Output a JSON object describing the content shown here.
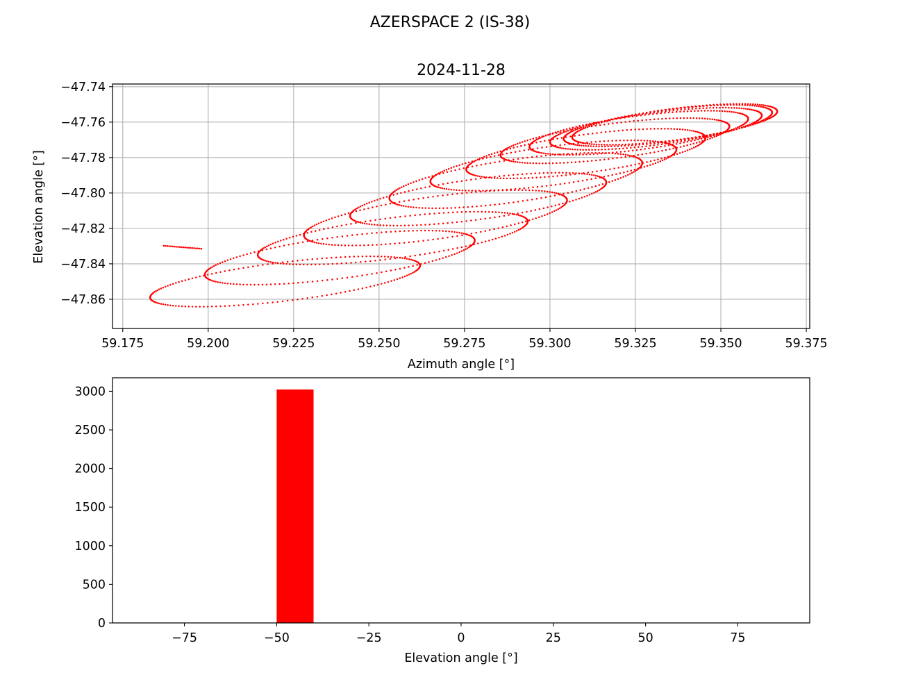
{
  "figure": {
    "suptitle": "AZERSPACE 2 (IS-38)"
  },
  "colors": {
    "series": "#ff0000",
    "grid": "#b0b0b0",
    "axis": "#000000"
  },
  "chart_data": [
    {
      "type": "scatter",
      "title": "2024-11-28",
      "xlabel": "Azimuth angle [°]",
      "ylabel": "Elevation angle [°]",
      "xlim": [
        59.172,
        59.376
      ],
      "ylim": [
        -47.8765,
        -47.7385
      ],
      "xticks": [
        59.175,
        59.2,
        59.225,
        59.25,
        59.275,
        59.3,
        59.325,
        59.35,
        59.375
      ],
      "xtick_labels": [
        "59.175",
        "59.200",
        "59.225",
        "59.250",
        "59.275",
        "59.300",
        "59.325",
        "59.350",
        "59.375"
      ],
      "yticks": [
        -47.74,
        -47.76,
        -47.78,
        -47.8,
        -47.82,
        -47.84,
        -47.86
      ],
      "ytick_labels": [
        "−47.74",
        "−47.76",
        "−47.78",
        "−47.80",
        "−47.82",
        "−47.84",
        "−47.86"
      ],
      "grid": true,
      "marker": "dot",
      "series_color": "#ff0000",
      "loops": [
        {
          "az_left": 59.183,
          "az_right": 59.262,
          "el_top": -47.83,
          "el_bottom": -47.87
        },
        {
          "az_left": 59.199,
          "az_right": 59.278,
          "el_top": -47.815,
          "el_bottom": -47.858
        },
        {
          "az_left": 59.2145,
          "az_right": 59.2935,
          "el_top": -47.8045,
          "el_bottom": -47.8465
        },
        {
          "az_left": 59.228,
          "az_right": 59.305,
          "el_top": -47.792,
          "el_bottom": -47.836
        },
        {
          "az_left": 59.2415,
          "az_right": 59.3165,
          "el_top": -47.7825,
          "el_bottom": -47.8245
        },
        {
          "az_left": 59.253,
          "az_right": 59.327,
          "el_top": -47.771,
          "el_bottom": -47.815
        },
        {
          "az_left": 59.265,
          "az_right": 59.337,
          "el_top": -47.7645,
          "el_bottom": -47.8045
        },
        {
          "az_left": 59.2755,
          "az_right": 59.3455,
          "el_top": -47.758,
          "el_bottom": -47.7975
        },
        {
          "az_left": 59.2855,
          "az_right": 59.3525,
          "el_top": -47.7525,
          "el_bottom": -47.7885
        },
        {
          "az_left": 59.294,
          "az_right": 59.358,
          "el_top": -47.7485,
          "el_bottom": -47.7835
        },
        {
          "az_left": 59.3,
          "az_right": 59.362,
          "el_top": -47.747,
          "el_bottom": -47.7805
        },
        {
          "az_left": 59.304,
          "az_right": 59.365,
          "el_top": -47.7455,
          "el_bottom": -47.7785
        },
        {
          "az_left": 59.3065,
          "az_right": 59.3665,
          "el_top": -47.745,
          "el_bottom": -47.7775
        }
      ],
      "end_point": {
        "az": 59.198,
        "el": -47.8315
      }
    },
    {
      "type": "bar",
      "title": "",
      "xlabel": "Elevation angle [°]",
      "ylabel": "",
      "xlim": [
        -94.5,
        94.5
      ],
      "ylim": [
        0,
        3175
      ],
      "xticks": [
        -75,
        -50,
        -25,
        0,
        25,
        50,
        75
      ],
      "xtick_labels": [
        "−75",
        "−50",
        "−25",
        "0",
        "25",
        "50",
        "75"
      ],
      "yticks": [
        0,
        500,
        1000,
        1500,
        2000,
        2500,
        3000
      ],
      "ytick_labels": [
        "0",
        "500",
        "1000",
        "1500",
        "2000",
        "2500",
        "3000"
      ],
      "grid": false,
      "bars": [
        {
          "x0": -50,
          "x1": -40,
          "value": 3024
        }
      ]
    }
  ]
}
